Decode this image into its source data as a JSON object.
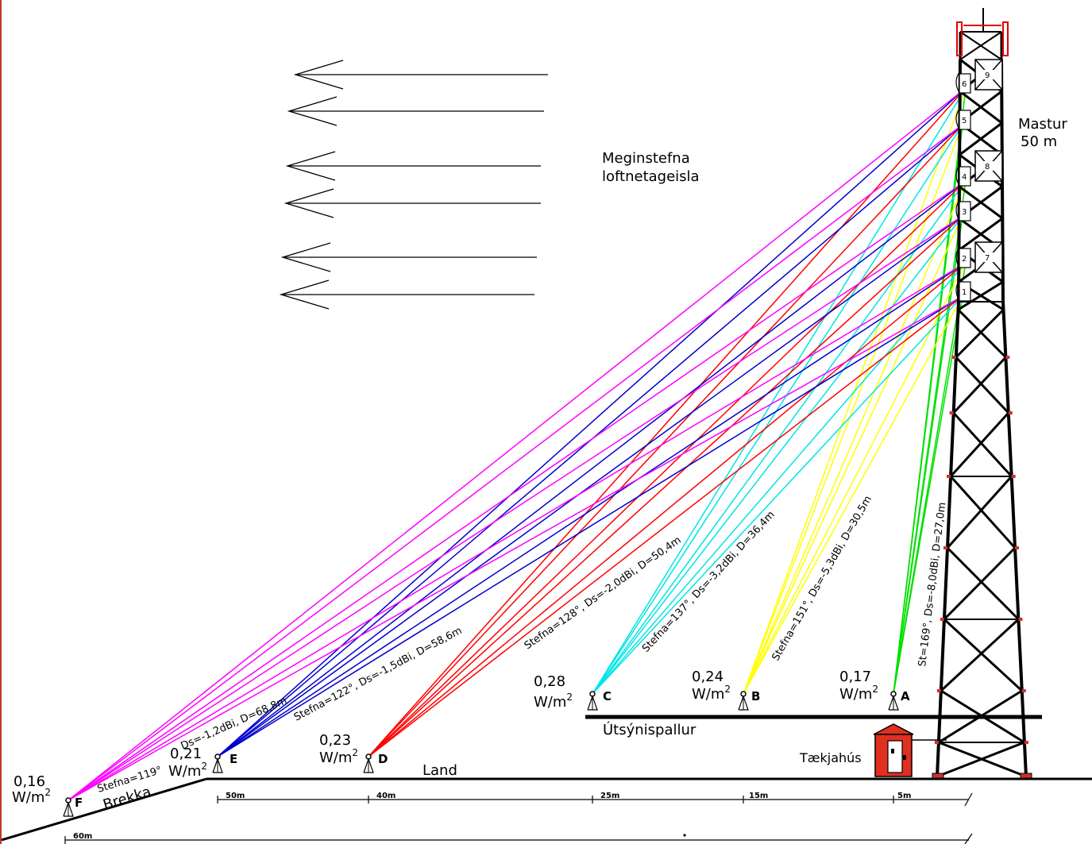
{
  "mast": {
    "title": "Mastur",
    "height": "50  m"
  },
  "direction_label": {
    "line1": "Meginstefna",
    "line2": "loftnetageisla"
  },
  "platform_label": "Útsýnispallur",
  "equipment_label": "Tækjahús",
  "land_label": "Land",
  "slope_label": "Brekka",
  "antennas": [
    "1",
    "2",
    "3",
    "4",
    "5",
    "6"
  ],
  "boxes": [
    "7",
    "8",
    "9"
  ],
  "points": [
    {
      "id": "A",
      "value": "0,17",
      "unit": "W/m",
      "sup": "2",
      "color": "#00e000",
      "beam_label": "St=169°, Ds=-8,0dBi, D=27,0m"
    },
    {
      "id": "B",
      "value": "0,24",
      "unit": "W/m",
      "sup": "2",
      "color": "#ffff00",
      "beam_label": "Stefna=151°, Ds=-5,3dBi, D=30,5m"
    },
    {
      "id": "C",
      "value": "0,28",
      "unit": "W/m",
      "sup": "2",
      "color": "#00e5e5",
      "beam_label": "Stefna=137°, Ds=-3,2dBi, D=36,4m"
    },
    {
      "id": "D",
      "value": "0,23",
      "unit": "W/m",
      "sup": "2",
      "color": "#ff0000",
      "beam_label": "Stefna=128°, Ds=-2,0dBi, D=50,4m"
    },
    {
      "id": "E",
      "value": "0,21",
      "unit": "W/m",
      "sup": "2",
      "color": "#0000cc",
      "beam_label": "Stefna=122°, Ds=-1,5dBi, D=58,6m"
    },
    {
      "id": "F",
      "value": "0,16",
      "unit": "W/m",
      "sup": "2",
      "color": "#ff00ff",
      "beam_label_1": "Ds=-1,2dBi, D=68,8m",
      "beam_label_2": "Stefna=119°"
    }
  ],
  "dimensions": [
    "50m",
    "40m",
    "25m",
    "15m",
    "5m",
    "60m"
  ]
}
